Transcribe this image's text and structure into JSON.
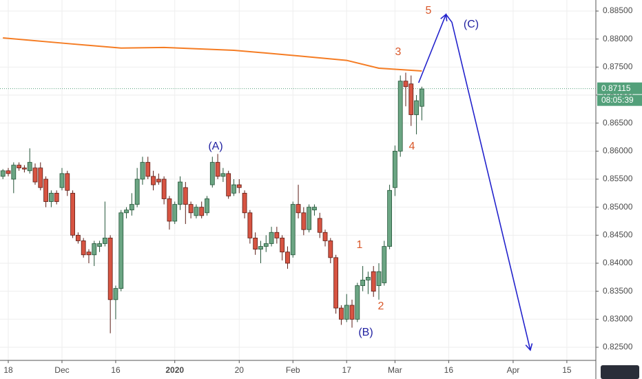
{
  "chart_data": {
    "type": "candlestick",
    "xlim": [
      -1.54,
      109.4
    ],
    "ylim": [
      0.82266,
      0.88697
    ],
    "xticks": [
      {
        "value": 0,
        "label": "18"
      },
      {
        "value": 10,
        "label": "Dec"
      },
      {
        "value": 20,
        "label": "16"
      },
      {
        "value": 31,
        "label": "2020"
      },
      {
        "value": 43,
        "label": "20"
      },
      {
        "value": 53,
        "label": "Feb"
      },
      {
        "value": 63,
        "label": "17"
      },
      {
        "value": 72,
        "label": "Mar"
      },
      {
        "value": 82,
        "label": "16"
      },
      {
        "value": 94,
        "label": "Apr"
      },
      {
        "value": 104,
        "label": "15"
      }
    ],
    "yticks": [
      {
        "value": 0.825,
        "label": "0.82500"
      },
      {
        "value": 0.83,
        "label": "0.83000"
      },
      {
        "value": 0.835,
        "label": "0.83500"
      },
      {
        "value": 0.84,
        "label": "0.84000"
      },
      {
        "value": 0.845,
        "label": "0.84500"
      },
      {
        "value": 0.85,
        "label": "0.85000"
      },
      {
        "value": 0.855,
        "label": "0.85500"
      },
      {
        "value": 0.86,
        "label": "0.86000"
      },
      {
        "value": 0.865,
        "label": "0.86500"
      },
      {
        "value": 0.87,
        "label": "0.87000"
      },
      {
        "value": 0.875,
        "label": "0.87500"
      },
      {
        "value": 0.88,
        "label": "0.88000"
      },
      {
        "value": 0.885,
        "label": "0.88500"
      }
    ],
    "grid": true,
    "up_color": "#6ba583",
    "down_color": "#d75442",
    "candles": {
      "x": [
        -1,
        0,
        1,
        2,
        3,
        4,
        5,
        6,
        7,
        8,
        9,
        10,
        11,
        12,
        13,
        14,
        15,
        16,
        17,
        18,
        19,
        20,
        21,
        22,
        23,
        24,
        25,
        26,
        27,
        28,
        29,
        30,
        31,
        32,
        33,
        34,
        35,
        36,
        37,
        38,
        39,
        40,
        41,
        42,
        43,
        44,
        45,
        46,
        47,
        48,
        49,
        50,
        51,
        52,
        53,
        54,
        55,
        56,
        57,
        58,
        59,
        60,
        61,
        62,
        63,
        64,
        65,
        66,
        67,
        68,
        69,
        70,
        71,
        72,
        73,
        74,
        75,
        76,
        77
      ],
      "open": [
        0.8555,
        0.8565,
        0.855,
        0.8575,
        0.857,
        0.8565,
        0.857,
        0.857,
        0.855,
        0.851,
        0.8525,
        0.8535,
        0.856,
        0.8525,
        0.845,
        0.844,
        0.842,
        0.8415,
        0.843,
        0.8435,
        0.8445,
        0.8335,
        0.8355,
        0.849,
        0.8495,
        0.8505,
        0.855,
        0.858,
        0.8555,
        0.855,
        0.855,
        0.8515,
        0.8475,
        0.8505,
        0.8535,
        0.8505,
        0.8485,
        0.85,
        0.849,
        0.854,
        0.858,
        0.8555,
        0.856,
        0.8525,
        0.854,
        0.8525,
        0.849,
        0.8445,
        0.8425,
        0.843,
        0.8435,
        0.8455,
        0.8445,
        0.842,
        0.8415,
        0.8505,
        0.849,
        0.846,
        0.8495,
        0.848,
        0.8455,
        0.844,
        0.841,
        0.832,
        0.83,
        0.8325,
        0.83,
        0.836,
        0.837,
        0.8385,
        0.836,
        0.8365,
        0.843,
        0.8535,
        0.86,
        0.8725,
        0.872,
        0.8665,
        0.868
      ],
      "high": [
        0.8568,
        0.857,
        0.858,
        0.858,
        0.8575,
        0.8605,
        0.8578,
        0.858,
        0.8555,
        0.853,
        0.853,
        0.857,
        0.8565,
        0.853,
        0.8455,
        0.8445,
        0.8425,
        0.844,
        0.844,
        0.851,
        0.845,
        0.836,
        0.8495,
        0.85,
        0.8525,
        0.857,
        0.859,
        0.859,
        0.8565,
        0.856,
        0.8555,
        0.852,
        0.851,
        0.8555,
        0.8545,
        0.851,
        0.8505,
        0.851,
        0.852,
        0.859,
        0.8595,
        0.857,
        0.8565,
        0.855,
        0.855,
        0.853,
        0.8495,
        0.8455,
        0.844,
        0.845,
        0.8465,
        0.8465,
        0.845,
        0.843,
        0.851,
        0.854,
        0.85,
        0.8505,
        0.8505,
        0.849,
        0.846,
        0.8445,
        0.8415,
        0.8325,
        0.8345,
        0.8335,
        0.8365,
        0.8395,
        0.8385,
        0.8395,
        0.84,
        0.844,
        0.854,
        0.861,
        0.8735,
        0.874,
        0.8735,
        0.87,
        0.8715
      ],
      "low": [
        0.855,
        0.8555,
        0.8525,
        0.8565,
        0.8562,
        0.856,
        0.854,
        0.853,
        0.85,
        0.85,
        0.8505,
        0.853,
        0.852,
        0.8445,
        0.8435,
        0.841,
        0.84,
        0.8395,
        0.842,
        0.843,
        0.8275,
        0.83,
        0.835,
        0.848,
        0.8485,
        0.85,
        0.854,
        0.855,
        0.853,
        0.854,
        0.8505,
        0.846,
        0.847,
        0.8495,
        0.847,
        0.848,
        0.848,
        0.848,
        0.8485,
        0.8535,
        0.855,
        0.8545,
        0.8515,
        0.852,
        0.8525,
        0.848,
        0.8435,
        0.8415,
        0.84,
        0.842,
        0.843,
        0.8435,
        0.8405,
        0.839,
        0.841,
        0.848,
        0.845,
        0.8455,
        0.8485,
        0.8445,
        0.843,
        0.84,
        0.831,
        0.829,
        0.8295,
        0.8285,
        0.8295,
        0.835,
        0.8345,
        0.834,
        0.8335,
        0.836,
        0.8425,
        0.852,
        0.859,
        0.868,
        0.8645,
        0.863,
        0.8655
      ],
      "close": [
        0.8565,
        0.856,
        0.8575,
        0.857,
        0.8568,
        0.858,
        0.8545,
        0.8535,
        0.851,
        0.8525,
        0.851,
        0.856,
        0.853,
        0.845,
        0.844,
        0.8415,
        0.8415,
        0.8435,
        0.8435,
        0.8445,
        0.8335,
        0.8355,
        0.849,
        0.8495,
        0.8505,
        0.855,
        0.858,
        0.8555,
        0.854,
        0.8545,
        0.8515,
        0.8475,
        0.8505,
        0.8545,
        0.8505,
        0.849,
        0.85,
        0.8485,
        0.8515,
        0.858,
        0.8555,
        0.856,
        0.852,
        0.854,
        0.8535,
        0.849,
        0.8445,
        0.8425,
        0.843,
        0.8435,
        0.8455,
        0.8445,
        0.842,
        0.84,
        0.8505,
        0.849,
        0.846,
        0.85,
        0.85,
        0.8455,
        0.844,
        0.841,
        0.832,
        0.83,
        0.8325,
        0.83,
        0.836,
        0.837,
        0.8375,
        0.835,
        0.8385,
        0.843,
        0.853,
        0.86,
        0.8725,
        0.8715,
        0.8665,
        0.869,
        0.8711
      ]
    },
    "moving_average": {
      "color": "#f57c23",
      "x": [
        -1,
        11,
        21,
        29,
        42,
        54,
        63,
        69,
        77
      ],
      "values": [
        0.8802,
        0.8792,
        0.8784,
        0.8785,
        0.878,
        0.877,
        0.8762,
        0.8748,
        0.8743
      ]
    },
    "projection": {
      "color": "#2222cc",
      "x": [
        76.4,
        81.5,
        82.6,
        97.2
      ],
      "values": [
        0.8722,
        0.8844,
        0.883,
        0.8245
      ]
    },
    "last_price": {
      "value": 0.87115,
      "label": "0.87115",
      "countdown": "08:05:39",
      "color": "#53a07a"
    },
    "annotations": [
      {
        "text": "(A)",
        "color": "#1f1fa0"
      },
      {
        "text": "(B)",
        "color": "#1f1fa0"
      },
      {
        "text": "(C)",
        "color": "#1f1fa0"
      },
      {
        "text": "1",
        "color": "#d9582a"
      },
      {
        "text": "2",
        "color": "#d9582a"
      },
      {
        "text": "3",
        "color": "#d9582a"
      },
      {
        "text": "4",
        "color": "#d9582a"
      },
      {
        "text": "5",
        "color": "#d9582a"
      }
    ]
  }
}
